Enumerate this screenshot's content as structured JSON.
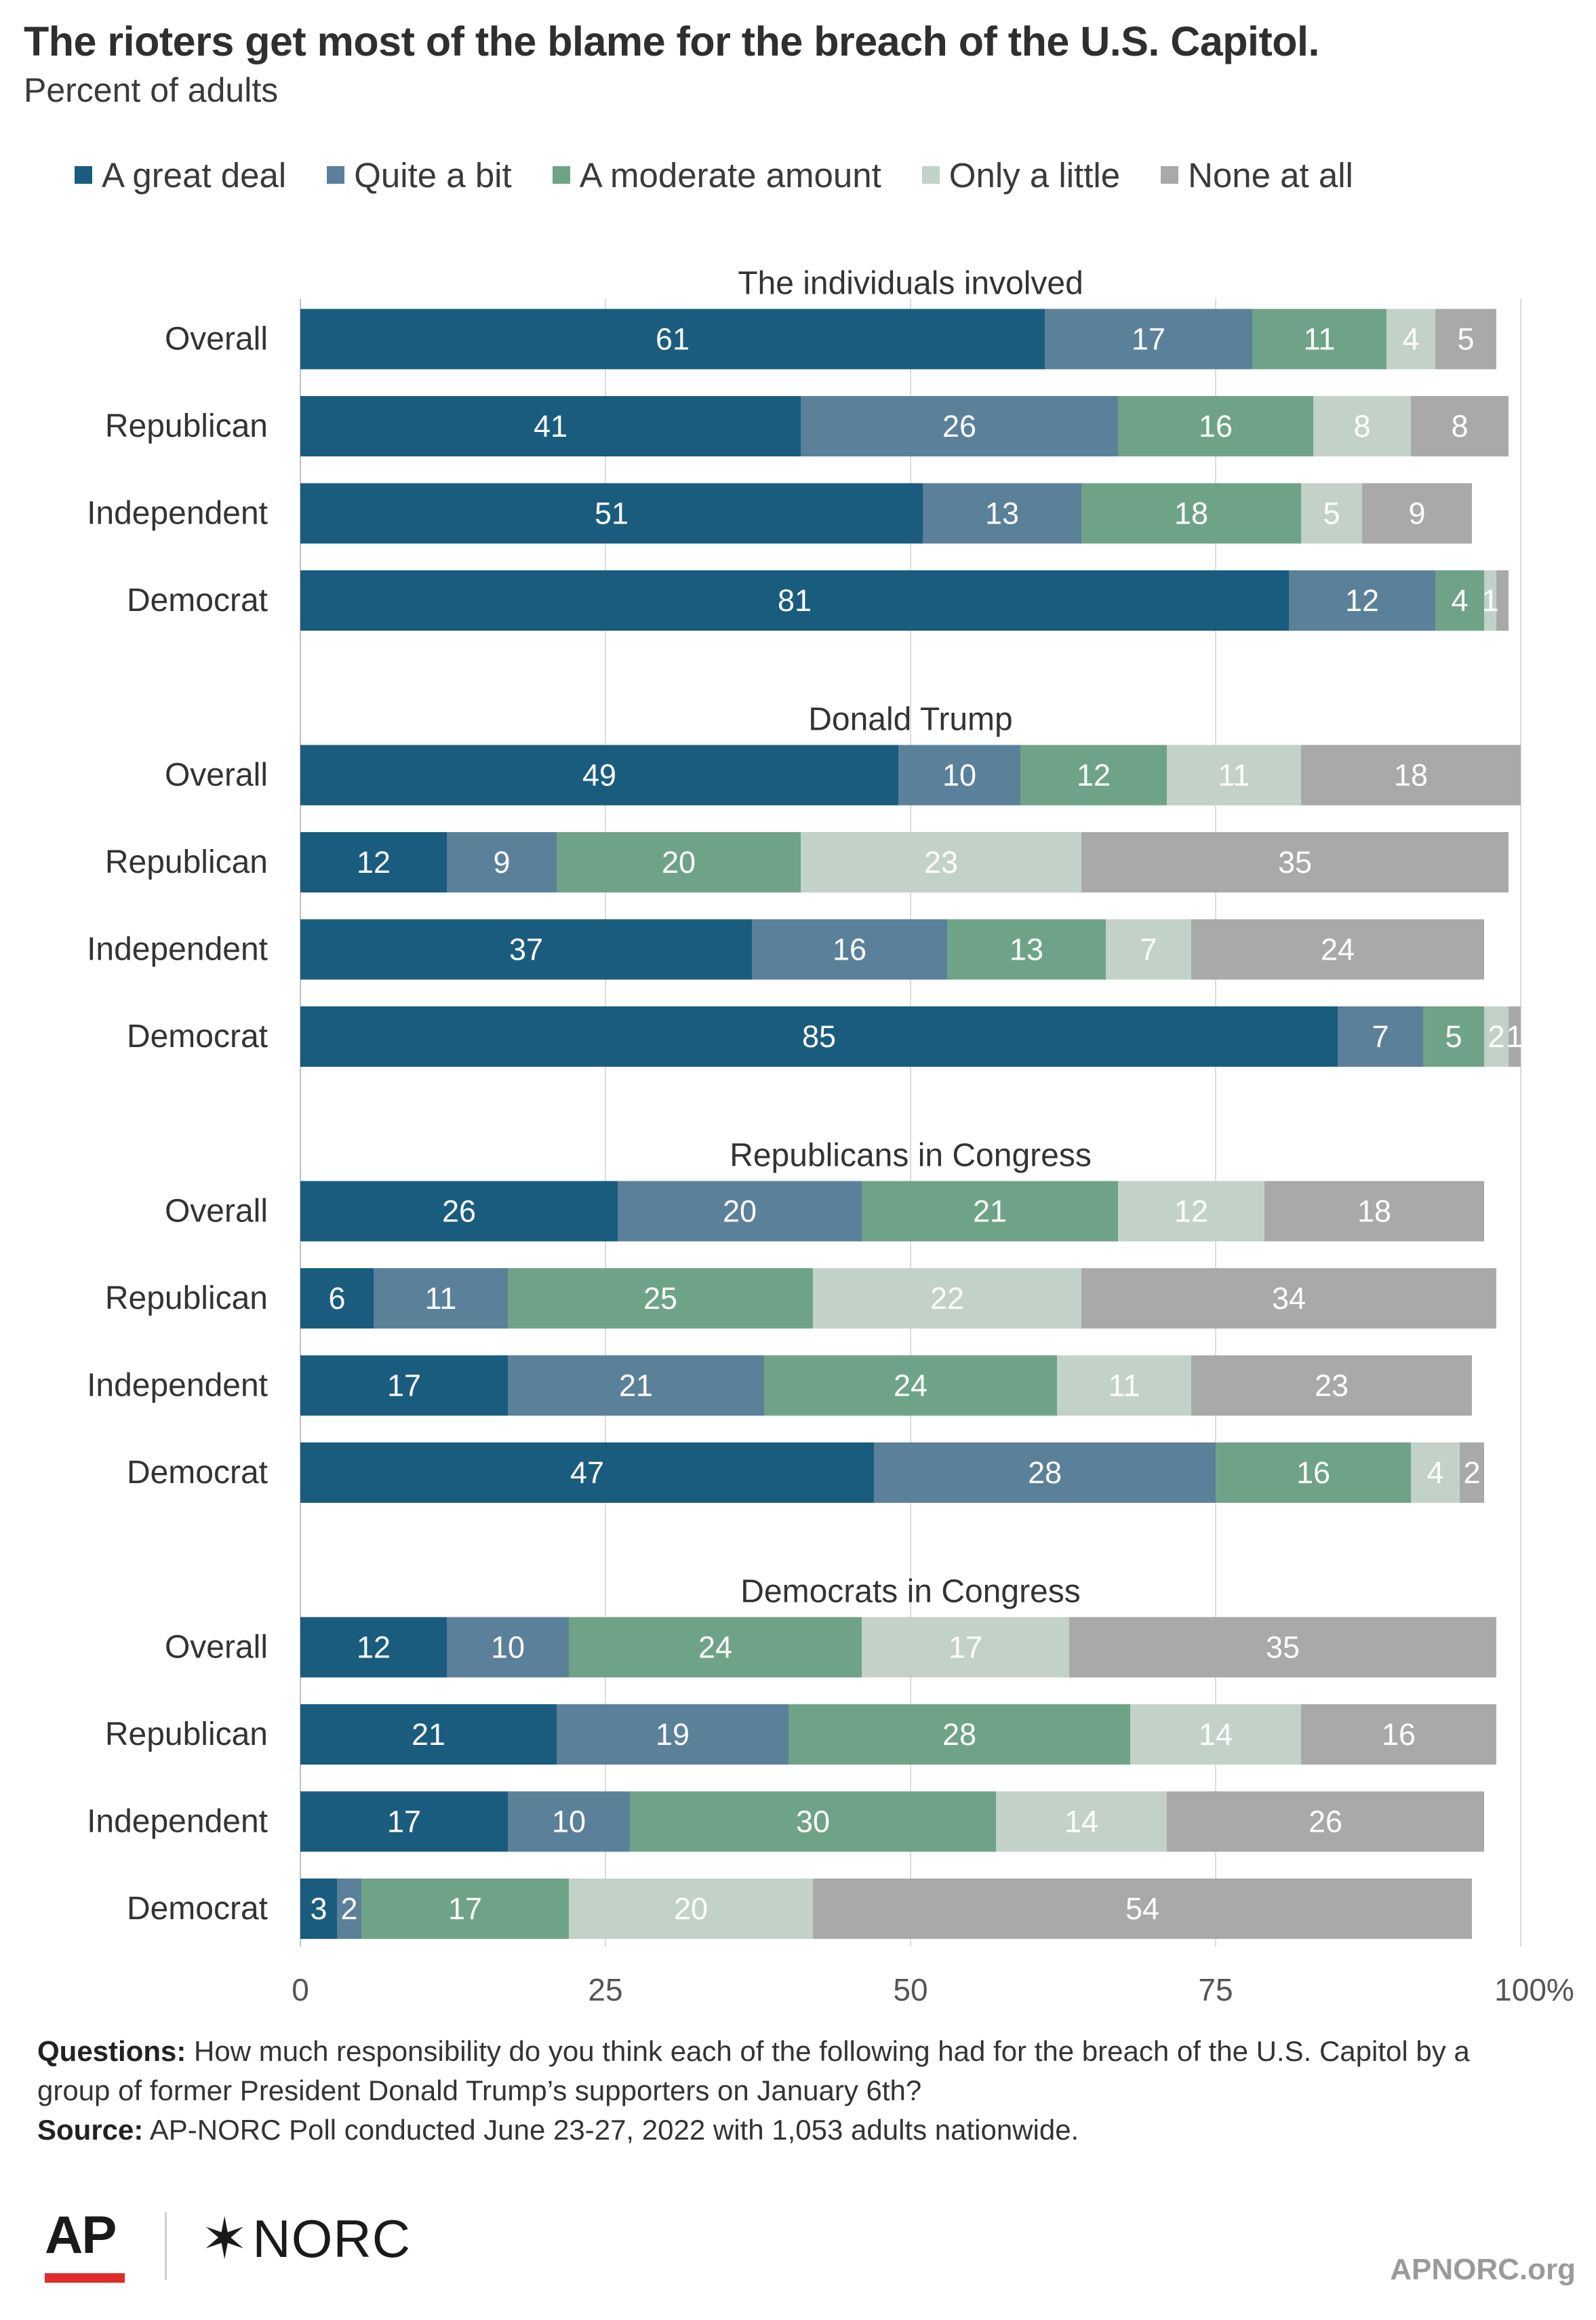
{
  "chart_data": {
    "type": "bar",
    "orientation": "horizontal",
    "stacked": true,
    "title": "The rioters get most of the blame for the breach of the U.S. Capitol.",
    "subtitle": "Percent of adults",
    "legend_position": "top",
    "grid": true,
    "xlim": [
      0,
      100
    ],
    "x_ticks": [
      "0",
      "25",
      "50",
      "75",
      "100%"
    ],
    "x_tick_values": [
      0,
      25,
      50,
      75,
      100
    ],
    "series": [
      {
        "name": "A great deal",
        "color": "#1a5c7e",
        "label_color": "#ffffff"
      },
      {
        "name": "Quite a bit",
        "color": "#5b809a",
        "label_color": "#ffffff"
      },
      {
        "name": "A moderate amount",
        "color": "#6fa387",
        "label_color": "#ffffff"
      },
      {
        "name": "Only a little",
        "color": "#c3d2c8",
        "label_color": "#ffffff"
      },
      {
        "name": "None at all",
        "color": "#a9a9a9",
        "label_color": "#ffffff"
      }
    ],
    "groups": [
      {
        "title": "The individuals involved",
        "rows": [
          {
            "label": "Overall",
            "values": [
              61,
              17,
              11,
              4,
              5
            ],
            "labels": [
              "61",
              "17",
              "11",
              "4",
              "5"
            ]
          },
          {
            "label": "Republican",
            "values": [
              41,
              26,
              16,
              8,
              8
            ],
            "labels": [
              "41",
              "26",
              "16",
              "8",
              "8"
            ]
          },
          {
            "label": "Independent",
            "values": [
              51,
              13,
              18,
              5,
              9
            ],
            "labels": [
              "51",
              "13",
              "18",
              "5",
              "9"
            ]
          },
          {
            "label": "Democrat",
            "values": [
              81,
              12,
              4,
              1,
              1
            ],
            "labels": [
              "81",
              "12",
              "4",
              "1",
              ""
            ]
          }
        ]
      },
      {
        "title": "Donald Trump",
        "rows": [
          {
            "label": "Overall",
            "values": [
              49,
              10,
              12,
              11,
              18
            ],
            "labels": [
              "49",
              "10",
              "12",
              "11",
              "18"
            ]
          },
          {
            "label": "Republican",
            "values": [
              12,
              9,
              20,
              23,
              35
            ],
            "labels": [
              "12",
              "9",
              "20",
              "23",
              "35"
            ]
          },
          {
            "label": "Independent",
            "values": [
              37,
              16,
              13,
              7,
              24
            ],
            "labels": [
              "37",
              "16",
              "13",
              "7",
              "24"
            ]
          },
          {
            "label": "Democrat",
            "values": [
              85,
              7,
              5,
              2,
              1
            ],
            "labels": [
              "85",
              "7",
              "5",
              "2",
              "1"
            ]
          }
        ]
      },
      {
        "title": "Republicans in Congress",
        "rows": [
          {
            "label": "Overall",
            "values": [
              26,
              20,
              21,
              12,
              18
            ],
            "labels": [
              "26",
              "20",
              "21",
              "12",
              "18"
            ]
          },
          {
            "label": "Republican",
            "values": [
              6,
              11,
              25,
              22,
              34
            ],
            "labels": [
              "6",
              "11",
              "25",
              "22",
              "34"
            ]
          },
          {
            "label": "Independent",
            "values": [
              17,
              21,
              24,
              11,
              23
            ],
            "labels": [
              "17",
              "21",
              "24",
              "11",
              "23"
            ]
          },
          {
            "label": "Democrat",
            "values": [
              47,
              28,
              16,
              4,
              2
            ],
            "labels": [
              "47",
              "28",
              "16",
              "4",
              "2"
            ]
          }
        ]
      },
      {
        "title": "Democrats in Congress",
        "rows": [
          {
            "label": "Overall",
            "values": [
              12,
              10,
              24,
              17,
              35
            ],
            "labels": [
              "12",
              "10",
              "24",
              "17",
              "35"
            ]
          },
          {
            "label": "Republican",
            "values": [
              21,
              19,
              28,
              14,
              16
            ],
            "labels": [
              "21",
              "19",
              "28",
              "14",
              "16"
            ]
          },
          {
            "label": "Independent",
            "values": [
              17,
              10,
              30,
              14,
              26
            ],
            "labels": [
              "17",
              "10",
              "30",
              "14",
              "26"
            ]
          },
          {
            "label": "Democrat",
            "values": [
              3,
              2,
              17,
              20,
              54
            ],
            "labels": [
              "3",
              "2",
              "17",
              "20",
              "54"
            ]
          }
        ]
      }
    ]
  },
  "footer": {
    "questions_label": "Questions:",
    "questions_text": "How much responsibility do you think each of the following had for the breach of the U.S. Capitol by a group of former President Donald Trump’s supporters on January 6th?",
    "source_label": "Source:",
    "source_text": "AP-NORC Poll conducted June 23-27, 2022 with 1,053 adults nationwide.",
    "logo_ap": "AP",
    "logo_norc_star": "✶",
    "logo_norc": "NORC",
    "site": "APNORC.org"
  }
}
